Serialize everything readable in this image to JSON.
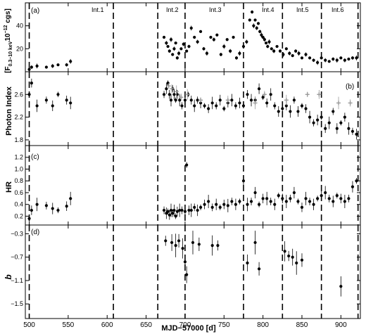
{
  "chart_data": [
    {
      "type": "scatter",
      "panel_label": "(a)",
      "ylabel_main": "F",
      "ylabel_sub": "0.3–10 keV",
      "ylabel_units": "10",
      "ylabel_exp": "−12",
      "ylabel_tail": " cgs]",
      "ylabel_open": "[",
      "ylim": [
        0,
        60
      ],
      "yticks": [
        20,
        40
      ],
      "tick_labels": [
        "20",
        "40"
      ],
      "intervals": [
        "Int.1",
        "Int.2",
        "Int.3",
        "Int.4",
        "Int.5",
        "Int.6"
      ],
      "series": [
        {
          "x": [
            500,
            503,
            510,
            522,
            530,
            537,
            548,
            553,
            673,
            676,
            678,
            680,
            682,
            684,
            686,
            688,
            690,
            692,
            695,
            698,
            702,
            705,
            708,
            712,
            716,
            720,
            724,
            728,
            733,
            737,
            741,
            746,
            750,
            754,
            758,
            762,
            766,
            770,
            775,
            779,
            783,
            786,
            788,
            790,
            792,
            794,
            796,
            798,
            800,
            802,
            804,
            806,
            808,
            811,
            814,
            818,
            822,
            826,
            830,
            834,
            838,
            842,
            846,
            850,
            855,
            860,
            865,
            870,
            875,
            880,
            885,
            890,
            895,
            900,
            905,
            910,
            915,
            920
          ],
          "y": [
            2,
            4,
            5,
            4,
            5,
            6,
            6,
            9,
            30,
            25,
            22,
            18,
            28,
            15,
            20,
            25,
            12,
            16,
            20,
            24,
            18,
            22,
            38,
            30,
            26,
            35,
            20,
            16,
            30,
            28,
            32,
            15,
            22,
            28,
            18,
            30,
            12,
            16,
            22,
            26,
            45,
            52,
            40,
            45,
            38,
            42,
            35,
            32,
            30,
            28,
            25,
            22,
            26,
            20,
            18,
            22,
            18,
            15,
            20,
            16,
            14,
            18,
            16,
            12,
            15,
            12,
            10,
            8,
            12,
            10,
            9,
            11,
            10,
            12,
            10,
            11,
            12,
            12
          ]
        }
      ]
    },
    {
      "type": "scatter",
      "panel_label": "(b)",
      "ylabel": "Photon Index",
      "ylim": [
        1.7,
        3.0
      ],
      "yticks": [
        1.8,
        2.2,
        2.6
      ],
      "tick_labels": [
        "1.8",
        "2.2",
        "2.6"
      ],
      "series": [
        {
          "name": "black",
          "x": [
            500,
            503,
            510,
            522,
            530,
            537,
            548,
            553,
            673,
            676,
            678,
            680,
            682,
            684,
            686,
            688,
            690,
            693,
            696,
            700,
            704,
            708,
            712,
            716,
            720,
            725,
            730,
            735,
            740,
            745,
            750,
            755,
            760,
            765,
            770,
            775,
            780,
            785,
            790,
            795,
            800,
            805,
            810,
            815,
            820,
            825,
            830,
            835,
            840,
            845,
            850,
            855,
            860,
            865,
            870,
            875,
            880,
            885,
            890,
            895,
            900,
            905,
            910,
            915,
            920
          ],
          "y": [
            2.6,
            2.8,
            2.4,
            2.5,
            2.4,
            2.6,
            2.5,
            2.45,
            2.6,
            2.7,
            2.8,
            2.6,
            2.5,
            2.7,
            2.6,
            2.5,
            2.6,
            2.5,
            2.4,
            2.5,
            2.6,
            2.5,
            2.4,
            2.5,
            2.45,
            2.4,
            2.35,
            2.45,
            2.4,
            2.5,
            2.35,
            2.45,
            2.5,
            2.4,
            2.45,
            2.4,
            2.6,
            2.5,
            2.5,
            2.7,
            2.55,
            2.45,
            2.6,
            2.4,
            2.3,
            2.35,
            2.4,
            2.3,
            2.5,
            2.3,
            2.4,
            2.35,
            2.2,
            2.1,
            2.15,
            2.2,
            2.0,
            2.1,
            2.3,
            2.0,
            2.1,
            2.2,
            2.0,
            1.95,
            1.9
          ]
        },
        {
          "name": "grey",
          "x": [
            679,
            683,
            689,
            695,
            703,
            720,
            755,
            790,
            802,
            830,
            857,
            872,
            897,
            912
          ],
          "y": [
            2.75,
            2.7,
            2.65,
            2.55,
            2.6,
            2.5,
            2.5,
            2.45,
            2.6,
            2.5,
            2.6,
            2.6,
            2.45,
            2.45
          ]
        }
      ]
    },
    {
      "type": "scatter",
      "panel_label": "(c)",
      "ylabel": "HR",
      "ylim": [
        0.05,
        1.4
      ],
      "yticks": [
        0.2,
        0.4,
        0.6,
        0.8,
        1.0,
        1.2
      ],
      "tick_labels": [
        "0.2",
        "0.4",
        "0.6",
        "0.8",
        "1.0",
        "1.2"
      ],
      "series": [
        {
          "x": [
            500,
            503,
            510,
            522,
            530,
            537,
            548,
            553,
            673,
            676,
            678,
            680,
            682,
            684,
            686,
            688,
            690,
            693,
            696,
            700,
            702,
            705,
            708,
            712,
            716,
            720,
            725,
            730,
            735,
            740,
            745,
            750,
            755,
            760,
            765,
            770,
            775,
            780,
            785,
            790,
            795,
            800,
            805,
            810,
            815,
            820,
            825,
            830,
            835,
            840,
            845,
            850,
            855,
            860,
            865,
            870,
            875,
            880,
            885,
            890,
            895,
            900,
            905,
            910,
            915,
            920
          ],
          "y": [
            0.16,
            0.3,
            0.4,
            0.38,
            0.33,
            0.3,
            0.37,
            0.5,
            0.3,
            0.25,
            0.28,
            0.22,
            0.3,
            0.25,
            0.3,
            0.2,
            0.28,
            0.3,
            0.3,
            0.28,
            1.07,
            0.3,
            0.3,
            0.35,
            0.3,
            0.35,
            0.4,
            0.45,
            0.35,
            0.4,
            0.35,
            0.4,
            0.38,
            0.45,
            0.4,
            0.45,
            0.8,
            0.4,
            0.45,
            0.6,
            0.4,
            0.5,
            0.5,
            0.45,
            0.4,
            0.55,
            0.5,
            0.45,
            0.5,
            0.6,
            0.45,
            0.35,
            0.5,
            0.45,
            0.4,
            0.5,
            0.55,
            0.6,
            0.5,
            0.45,
            0.55,
            0.5,
            0.45,
            0.5,
            0.7,
            0.8
          ]
        }
      ]
    },
    {
      "type": "scatter",
      "panel_label": "(d)",
      "ylabel": "b",
      "ylim": [
        -1.75,
        -0.15
      ],
      "yticks": [
        -1.5,
        -1.1,
        -0.7,
        -0.3
      ],
      "tick_labels": [
        "−1.5",
        "−1.1",
        "−0.7",
        "−0.3"
      ],
      "series": [
        {
          "x": [
            675,
            683,
            688,
            692,
            697,
            700,
            702,
            710,
            718,
            735,
            742,
            780,
            790,
            795,
            828,
            833,
            838,
            843,
            850,
            900
          ],
          "y": [
            -0.42,
            -0.45,
            -0.5,
            -0.42,
            -0.55,
            -0.78,
            -1.0,
            -0.45,
            -0.48,
            -0.5,
            -0.5,
            -0.8,
            -0.45,
            -0.9,
            -0.6,
            -0.68,
            -0.7,
            -0.8,
            -0.75,
            -1.2
          ]
        }
      ]
    }
  ],
  "shared": {
    "xlabel": "MJD−57000 [d]",
    "xlim": [
      495,
      925
    ],
    "xticks": [
      500,
      550,
      600,
      650,
      700,
      750,
      800,
      850,
      900
    ],
    "xtick_labels": [
      "500",
      "550",
      "600",
      "650",
      "700",
      "750",
      "800",
      "850",
      "900"
    ],
    "interval_boundaries": [
      500,
      608,
      665,
      700,
      775,
      825,
      875,
      922
    ]
  },
  "colors": {
    "marker": "#000000",
    "marker_grey": "#9a9a9a",
    "frame": "#000000"
  }
}
